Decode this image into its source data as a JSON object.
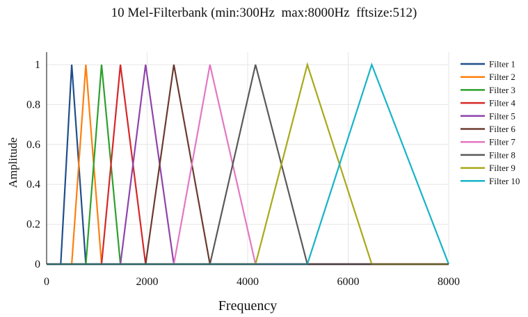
{
  "chart_data": {
    "type": "line",
    "title": "10 Mel-Filterbank (min:300Hz  max:8000Hz  fftsize:512)",
    "xlabel": "Frequency",
    "ylabel": "Amplitude",
    "xlim": [
      0,
      8000
    ],
    "ylim": [
      0,
      1
    ],
    "x_ticks": [
      "0",
      "2000",
      "4000",
      "6000",
      "8000"
    ],
    "y_ticks": [
      "0",
      "0.2",
      "0.4",
      "0.6",
      "0.8",
      "1"
    ],
    "grid": true,
    "legend_position": "right",
    "series": [
      {
        "name": "Filter 1",
        "color": "#1f4e8c",
        "x": [
          0,
          281,
          500,
          781,
          8000
        ],
        "y": [
          0,
          0,
          1,
          0,
          0
        ]
      },
      {
        "name": "Filter 2",
        "color": "#ff7f0e",
        "x": [
          0,
          500,
          781,
          1094,
          8000
        ],
        "y": [
          0,
          0,
          1,
          0,
          0
        ]
      },
      {
        "name": "Filter 3",
        "color": "#2ca02c",
        "x": [
          0,
          781,
          1094,
          1469,
          8000
        ],
        "y": [
          0,
          0,
          1,
          0,
          0
        ]
      },
      {
        "name": "Filter 4",
        "color": "#d62728",
        "x": [
          0,
          1094,
          1469,
          1969,
          8000
        ],
        "y": [
          0,
          0,
          1,
          0,
          0
        ]
      },
      {
        "name": "Filter 5",
        "color": "#8e44ad",
        "x": [
          0,
          1469,
          1969,
          2531,
          8000
        ],
        "y": [
          0,
          0,
          1,
          0,
          0
        ]
      },
      {
        "name": "Filter 6",
        "color": "#6b3a2e",
        "x": [
          0,
          1969,
          2531,
          3250,
          8000
        ],
        "y": [
          0,
          0,
          1,
          0,
          0
        ]
      },
      {
        "name": "Filter 7",
        "color": "#e377c2",
        "x": [
          0,
          2531,
          3250,
          4156,
          8000
        ],
        "y": [
          0,
          0,
          1,
          0,
          0
        ]
      },
      {
        "name": "Filter 8",
        "color": "#595959",
        "x": [
          0,
          3250,
          4156,
          5188,
          8000
        ],
        "y": [
          0,
          0,
          1,
          0,
          0
        ]
      },
      {
        "name": "Filter 9",
        "color": "#a8a81a",
        "x": [
          0,
          4156,
          5188,
          6469,
          8000
        ],
        "y": [
          0,
          0,
          1,
          0,
          0
        ]
      },
      {
        "name": "Filter 10",
        "color": "#17b3c7",
        "x": [
          0,
          5188,
          6469,
          8000
        ],
        "y": [
          0,
          0,
          1,
          0
        ]
      }
    ]
  }
}
